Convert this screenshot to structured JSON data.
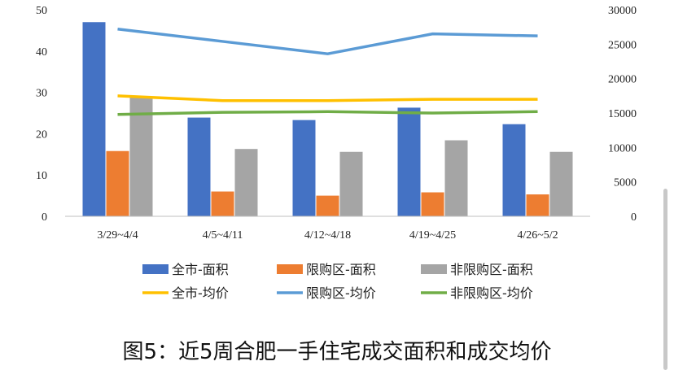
{
  "caption": "图5：近5周合肥一手住宅成交面积和成交均价",
  "chart_data": {
    "type": "bar",
    "categories": [
      "3/29~4/4",
      "4/5~4/11",
      "4/12~4/18",
      "4/19~4/25",
      "4/26~5/2"
    ],
    "y_left": {
      "ticks": [
        "0",
        "10",
        "20",
        "30",
        "40",
        "50"
      ],
      "ylim": [
        0,
        50
      ]
    },
    "y_right": {
      "ticks": [
        "0",
        "5000",
        "10000",
        "15000",
        "20000",
        "25000",
        "30000"
      ],
      "ylim": [
        0,
        30000
      ]
    },
    "series": [
      {
        "name": "全市-面积",
        "type": "bar",
        "axis": "left",
        "color": "#4472c4",
        "values": [
          47.0,
          23.9,
          23.3,
          26.3,
          22.3
        ]
      },
      {
        "name": "限购区-面积",
        "type": "bar",
        "axis": "left",
        "color": "#ed7d31",
        "values": [
          15.8,
          6.0,
          5.0,
          5.8,
          5.3
        ]
      },
      {
        "name": "非限购区-面积",
        "type": "bar",
        "axis": "left",
        "color": "#a5a5a5",
        "values": [
          29.0,
          16.3,
          15.6,
          18.4,
          15.6
        ]
      },
      {
        "name": "全市-均价",
        "type": "line",
        "axis": "right",
        "color": "#ffc000",
        "values": [
          17500,
          16800,
          16800,
          17000,
          17000
        ]
      },
      {
        "name": "限购区-均价",
        "type": "line",
        "axis": "right",
        "color": "#5b9bd5",
        "values": [
          27200,
          25400,
          23600,
          26500,
          26200
        ]
      },
      {
        "name": "非限购区-均价",
        "type": "line",
        "axis": "right",
        "color": "#70ad47",
        "values": [
          14800,
          15100,
          15200,
          15000,
          15200
        ]
      }
    ],
    "legend": {
      "placement": "bottom"
    },
    "grid": false
  }
}
